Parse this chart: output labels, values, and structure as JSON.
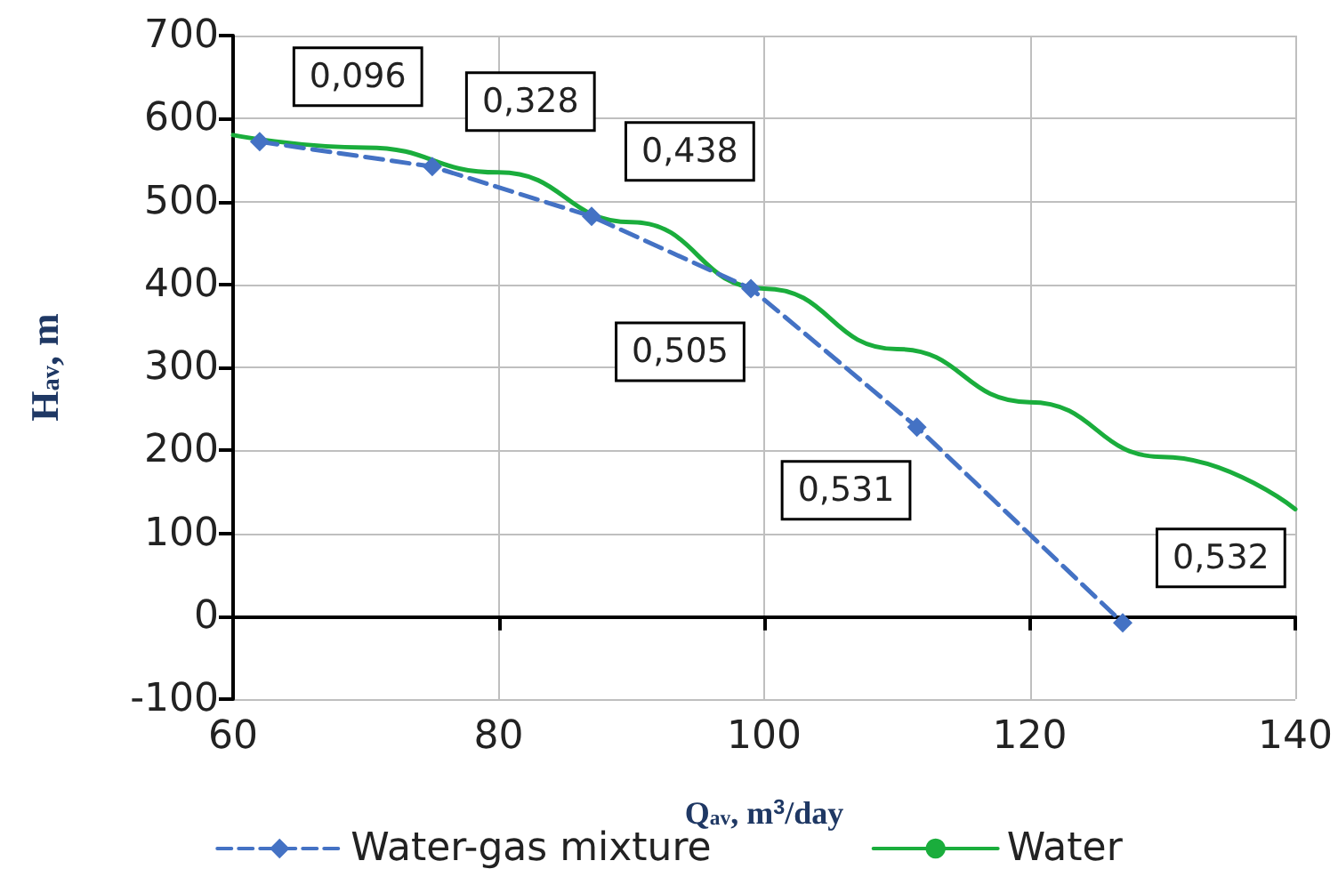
{
  "chart_data": {
    "type": "line",
    "xlabel": "Q$_{av}$, m$^{3}$/day",
    "ylabel": "H$_{av}$, m",
    "xlim": [
      60,
      140
    ],
    "xticks": [
      60,
      80,
      100,
      120,
      140
    ],
    "ylim": [
      -100,
      700
    ],
    "yticks": [
      -100,
      0,
      100,
      200,
      300,
      400,
      500,
      600,
      700
    ],
    "grid": true,
    "legend": "bottom",
    "annotations": [
      {
        "text": "0,096",
        "x": 62,
        "y": 572
      },
      {
        "text": "0,328",
        "x": 75,
        "y": 542
      },
      {
        "text": "0,438",
        "x": 87,
        "y": 482
      },
      {
        "text": "0,505",
        "x": 99,
        "y": 395
      },
      {
        "text": "0,531",
        "x": 111.5,
        "y": 228
      },
      {
        "text": "0,532",
        "x": 127,
        "y": -8
      }
    ],
    "series": [
      {
        "name": "Water-gas mixture",
        "color": "#4472c4",
        "marker": "diamond",
        "line_style": "dashed",
        "x": [
          62,
          75,
          87,
          99,
          111.5,
          127
        ],
        "values": [
          572,
          542,
          482,
          395,
          228,
          -8
        ]
      },
      {
        "name": "Water",
        "color": "#1aad3c",
        "marker": "none",
        "line_style": "solid",
        "x": [
          60,
          70,
          80,
          90,
          100,
          110,
          120,
          130,
          140
        ],
        "values": [
          580,
          565,
          535,
          475,
          395,
          322,
          258,
          192,
          129
        ]
      }
    ]
  }
}
